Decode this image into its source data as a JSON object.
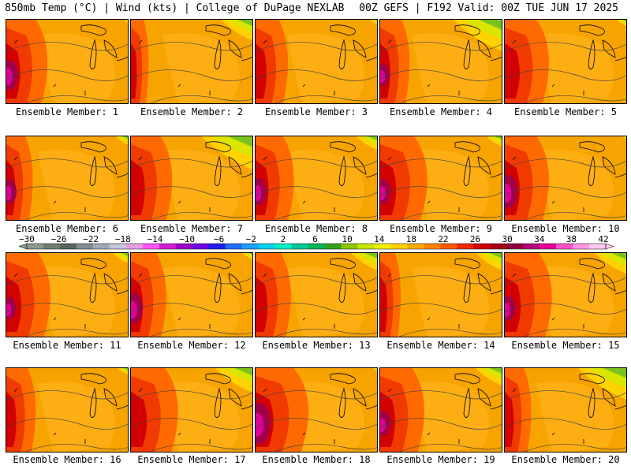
{
  "header": {
    "left_title": "850mb Temp (°C) | Wind (kts) | College of DuPage NEXLAB",
    "right_title": "00Z GEFS | F192 Valid: 00Z TUE JUN 17 2025"
  },
  "panels": [
    {
      "label": "Ensemble Member: 1",
      "hot_west": 0.7,
      "cool_ne": 0.1,
      "magenta": 0.5
    },
    {
      "label": "Ensemble Member: 2",
      "hot_west": 0.3,
      "cool_ne": 0.6,
      "magenta": 0.0
    },
    {
      "label": "Ensemble Member: 3",
      "hot_west": 0.55,
      "cool_ne": 0.15,
      "magenta": 0.0
    },
    {
      "label": "Ensemble Member: 4",
      "hot_west": 0.5,
      "cool_ne": 0.9,
      "magenta": 0.2
    },
    {
      "label": "Ensemble Member: 5",
      "hot_west": 0.75,
      "cool_ne": 0.2,
      "magenta": 0.0
    },
    {
      "label": "Ensemble Member: 6",
      "hot_west": 0.45,
      "cool_ne": 0.25,
      "magenta": 0.3
    },
    {
      "label": "Ensemble Member: 7",
      "hot_west": 0.7,
      "cool_ne": 0.95,
      "magenta": 0.0
    },
    {
      "label": "Ensemble Member: 8",
      "hot_west": 0.65,
      "cool_ne": 0.4,
      "magenta": 0.4
    },
    {
      "label": "Ensemble Member: 9",
      "hot_west": 0.8,
      "cool_ne": 0.3,
      "magenta": 0.3
    },
    {
      "label": "Ensemble Member: 10",
      "hot_west": 0.75,
      "cool_ne": 0.1,
      "magenta": 0.6
    },
    {
      "label": "Ensemble Member: 11",
      "hot_west": 0.75,
      "cool_ne": 0.3,
      "magenta": 0.2
    },
    {
      "label": "Ensemble Member: 12",
      "hot_west": 0.6,
      "cool_ne": 0.2,
      "magenta": 0.5
    },
    {
      "label": "Ensemble Member: 13",
      "hot_west": 0.6,
      "cool_ne": 0.5,
      "magenta": 0.0
    },
    {
      "label": "Ensemble Member: 14",
      "hot_west": 0.35,
      "cool_ne": 0.5,
      "magenta": 0.0
    },
    {
      "label": "Ensemble Member: 15",
      "hot_west": 0.8,
      "cool_ne": 0.6,
      "magenta": 0.3
    },
    {
      "label": "Ensemble Member: 16",
      "hot_west": 0.5,
      "cool_ne": 0.2,
      "magenta": 0.0
    },
    {
      "label": "Ensemble Member: 17",
      "hot_west": 0.8,
      "cool_ne": 0.7,
      "magenta": 0.0
    },
    {
      "label": "Ensemble Member: 18",
      "hot_west": 0.9,
      "cool_ne": 0.1,
      "magenta": 0.9
    },
    {
      "label": "Ensemble Member: 19",
      "hot_west": 0.75,
      "cool_ne": 0.5,
      "magenta": 0.3
    },
    {
      "label": "Ensemble Member: 20",
      "hot_west": 0.45,
      "cool_ne": 0.9,
      "magenta": 0.0
    }
  ],
  "colorbar": {
    "labels": [
      "−30",
      "−26",
      "−22",
      "−18",
      "−14",
      "−10",
      "−6",
      "−2",
      "2",
      "6",
      "10",
      "14",
      "18",
      "22",
      "26",
      "30",
      "34",
      "38",
      "42"
    ],
    "colors": [
      "#8c9a8c",
      "#6e7e70",
      "#5a6460",
      "#848a94",
      "#a2a8b4",
      "#c6c6d6",
      "#e6a0e6",
      "#ff55ff",
      "#d21ed2",
      "#9b00c8",
      "#6e00e6",
      "#1e1ef0",
      "#1e6eff",
      "#1ea0ff",
      "#00d2f0",
      "#00f0c8",
      "#00c896",
      "#00b45a",
      "#32a01e",
      "#8cc800",
      "#c8e600",
      "#f0f000",
      "#ffd200",
      "#ffaa00",
      "#ff8200",
      "#ff5a00",
      "#f02800",
      "#d20000",
      "#aa0014",
      "#8c003c",
      "#b40078",
      "#e6009b",
      "#ff50c8",
      "#ff96e6",
      "#ffc8f0"
    ]
  }
}
